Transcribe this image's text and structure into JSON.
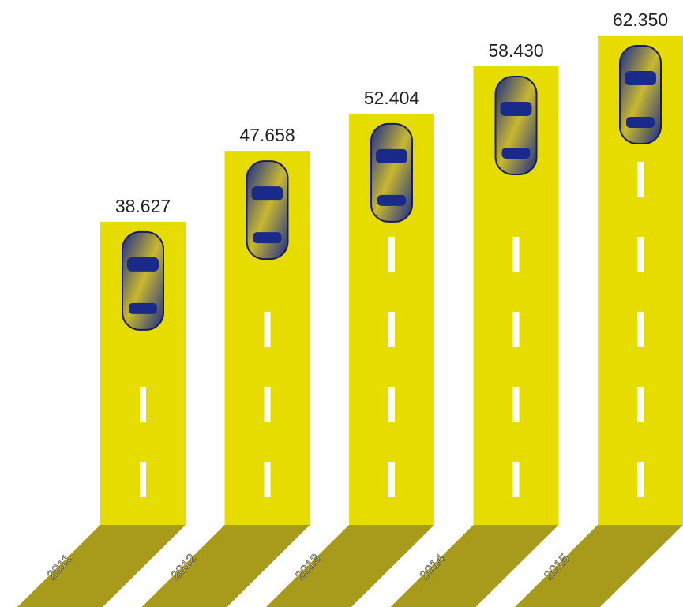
{
  "chart_data": {
    "type": "bar",
    "categories": [
      "2011",
      "2012",
      "2013",
      "2014",
      "2015"
    ],
    "values": [
      38627,
      47658,
      52404,
      58430,
      62350
    ],
    "value_labels": [
      "38.627",
      "47.658",
      "52.404",
      "58.430",
      "62.350"
    ],
    "color": "#e6dc00"
  }
}
